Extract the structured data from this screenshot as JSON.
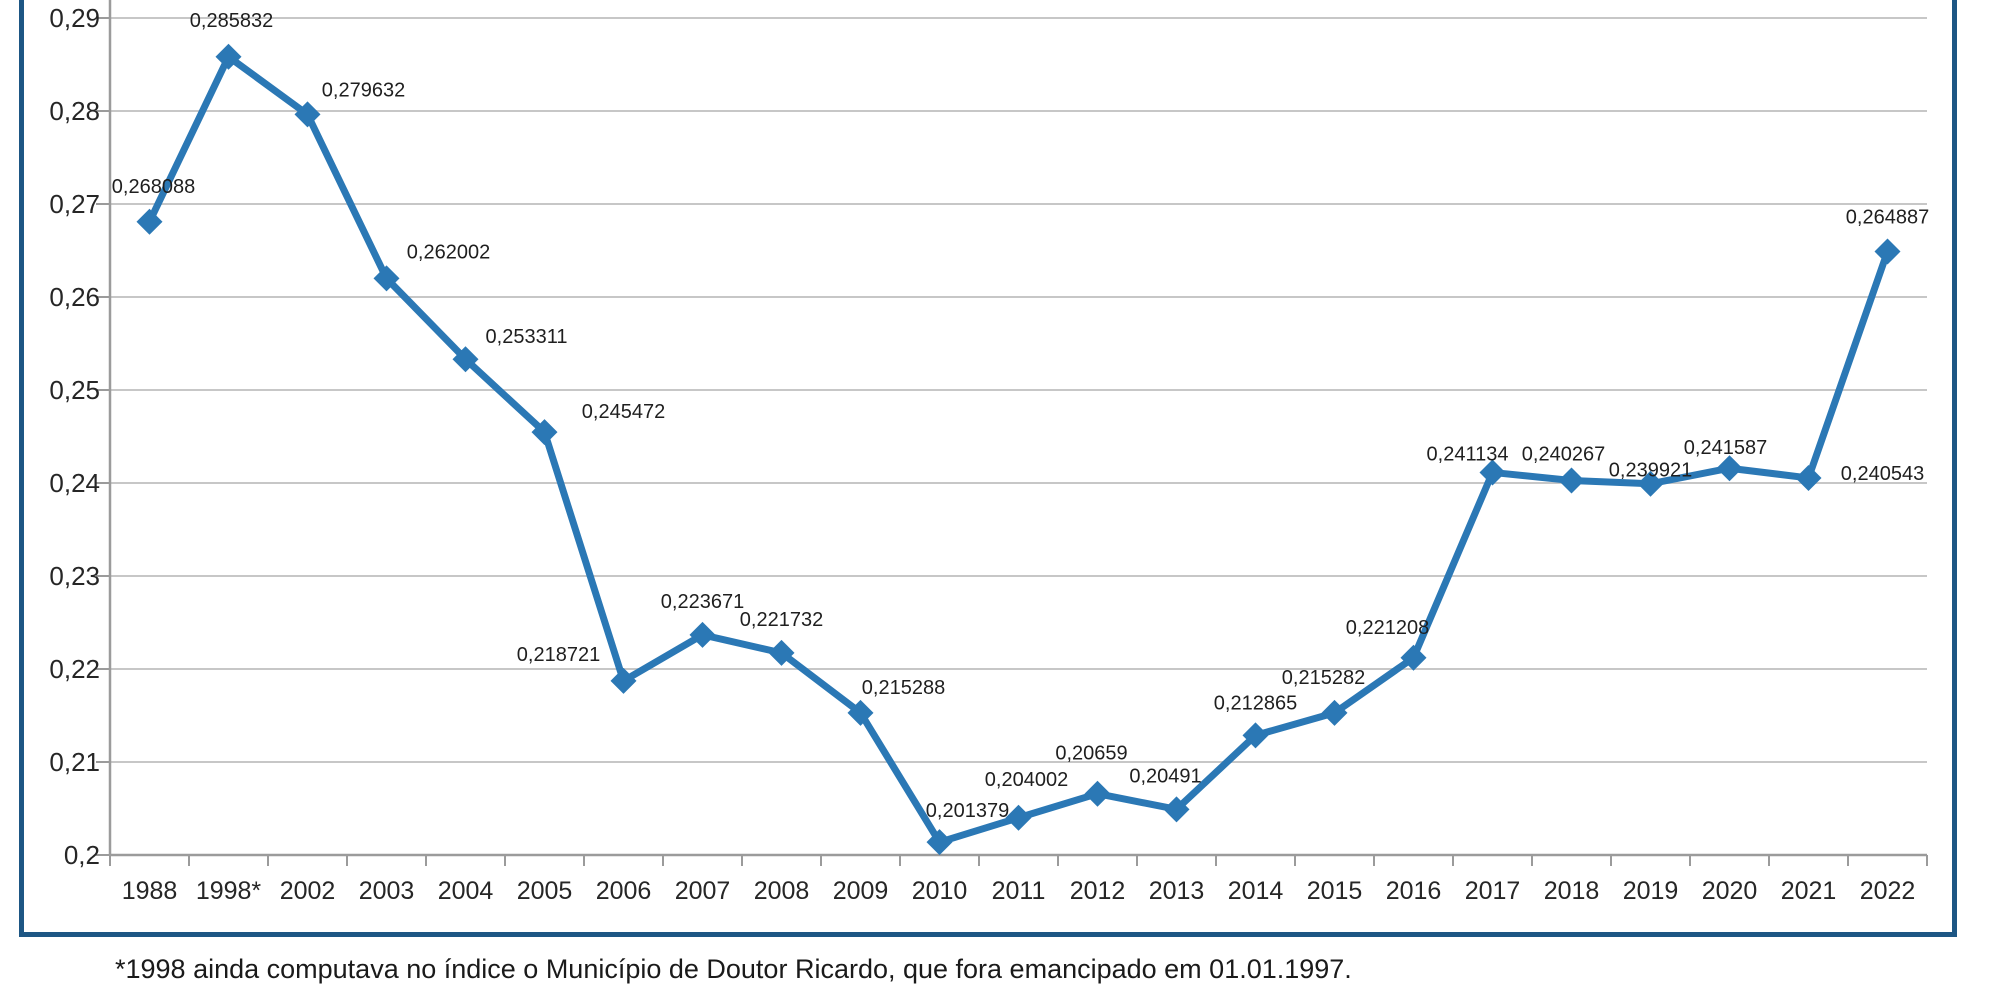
{
  "chart_data": {
    "type": "line",
    "categories": [
      "1988",
      "1998*",
      "2002",
      "2003",
      "2004",
      "2005",
      "2006",
      "2007",
      "2008",
      "2009",
      "2010",
      "2011",
      "2012",
      "2013",
      "2014",
      "2015",
      "2016",
      "2017",
      "2018",
      "2019",
      "2020",
      "2021",
      "2022"
    ],
    "values": [
      0.268088,
      0.285832,
      0.279632,
      0.262002,
      0.253311,
      0.245472,
      0.218721,
      0.223671,
      0.221732,
      0.215288,
      0.201379,
      0.204002,
      0.20659,
      0.20491,
      0.212865,
      0.215282,
      0.221208,
      0.241134,
      0.240267,
      0.239921,
      0.241587,
      0.240543,
      0.264887
    ],
    "point_labels": [
      "0,268088",
      "0,285832",
      "0,279632",
      "0,262002",
      "0,253311",
      "0,245472",
      "0,218721",
      "0,223671",
      "0,221732",
      "0,215288",
      "0,201379",
      "0,204002",
      "0,20659",
      "0,20491",
      "0,212865",
      "0,215282",
      "0,221208",
      "0,241134",
      "0,240267",
      "0,239921",
      "0,241587",
      "0,240543",
      "0,264887"
    ],
    "y_axis": {
      "tick_labels": [
        "0,29",
        "0,28",
        "0,27",
        "0,26",
        "0,25",
        "0,24",
        "0,23",
        "0,22",
        "0,21",
        "0,2"
      ],
      "min": 0.2,
      "max": 0.29,
      "grid": true
    },
    "legend": "none",
    "decimal_separator": ","
  },
  "colors": {
    "series": "#2b78b5",
    "frame_border": "#1d5684",
    "gridline": "#c7c7c7",
    "axis": "#9b9b9b",
    "label_text": "#1f1f1f",
    "background": "#ffffff"
  },
  "footnote": "*1998 ainda computava no índice o Município de Doutor Ricardo, que fora emancipado em 01.01.1997."
}
